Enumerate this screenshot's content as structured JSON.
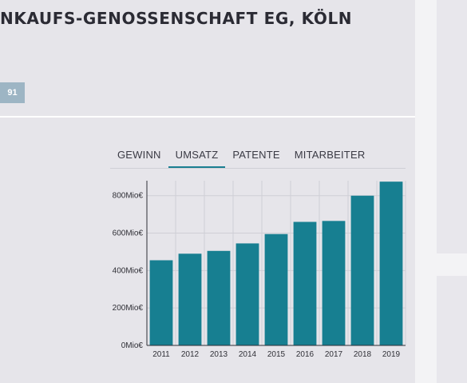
{
  "header": {
    "title": "NKAUFS-GENOSSENSCHAFT EG, KÖLN",
    "badge": "91"
  },
  "tabs": [
    {
      "label": "GEWINN",
      "active": false
    },
    {
      "label": "UMSATZ",
      "active": true
    },
    {
      "label": "PATENTE",
      "active": false
    },
    {
      "label": "MITARBEITER",
      "active": false
    }
  ],
  "colors": {
    "bar": "#177f91",
    "accent": "#1a7f91",
    "badge": "#9db5c4"
  },
  "chart_data": {
    "type": "bar",
    "categories": [
      "2011",
      "2012",
      "2013",
      "2014",
      "2015",
      "2016",
      "2017",
      "2018",
      "2019"
    ],
    "values": [
      455,
      490,
      505,
      545,
      595,
      660,
      665,
      800,
      875
    ],
    "yticks": [
      0,
      200,
      400,
      600,
      800
    ],
    "ytick_labels": [
      "0Mio€",
      "200Mio€",
      "400Mio€",
      "600Mio€",
      "800Mio€"
    ],
    "ylim": [
      0,
      880
    ],
    "grid": true,
    "legend": "none"
  }
}
